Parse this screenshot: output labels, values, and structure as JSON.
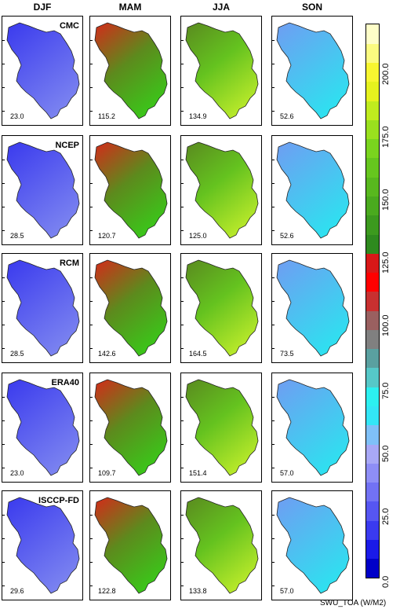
{
  "seasons": [
    "DJF",
    "MAM",
    "JJA",
    "SON"
  ],
  "models": [
    "CMC",
    "NCEP",
    "RCM",
    "ERA40",
    "ISCCP-FD"
  ],
  "chart_data": {
    "type": "heatmap",
    "title": "",
    "colorbar_label": "SWU_TOA (W/M2)",
    "colorbar_range": [
      0,
      220
    ],
    "colorbar_ticks": [
      "0.0",
      "25.0",
      "50.0",
      "75.0",
      "100.0",
      "125.0",
      "150.0",
      "175.0",
      "200.0"
    ],
    "panel_means": [
      {
        "model": "CMC",
        "values": [
          "23.0",
          "115.2",
          "134.9",
          "52.6"
        ]
      },
      {
        "model": "NCEP",
        "values": [
          "28.5",
          "120.7",
          "125.0",
          "52.6"
        ]
      },
      {
        "model": "RCM",
        "values": [
          "28.5",
          "142.6",
          "164.5",
          "73.5"
        ]
      },
      {
        "model": "ERA40",
        "values": [
          "23.0",
          "109.7",
          "151.4",
          "57.0"
        ]
      },
      {
        "model": "ISCCP-FD",
        "values": [
          "29.6",
          "122.8",
          "133.8",
          "57.0"
        ]
      }
    ],
    "colors": {
      "DJF": [
        "#3a3aee",
        "#7a82f0"
      ],
      "MAM": [
        "#d42a1a",
        "#5d8a1d",
        "#3cc41a"
      ],
      "JJA": [
        "#5a8a1f",
        "#64c21f",
        "#b6e82a"
      ],
      "SON": [
        "#6f9df2",
        "#2fe0f0"
      ]
    }
  }
}
